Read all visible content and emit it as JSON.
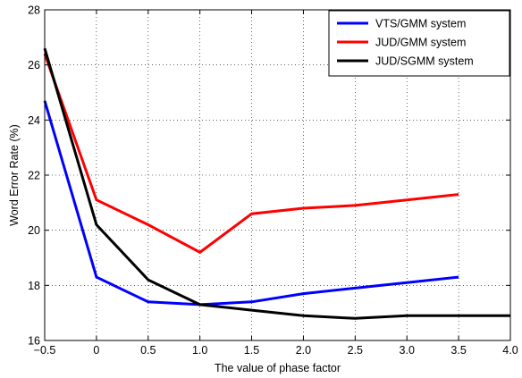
{
  "chart_data": {
    "type": "line",
    "xlabel": "The value of phase factor",
    "ylabel": "Word Error Rate (%)",
    "xlim": [
      -0.5,
      4.0
    ],
    "ylim": [
      16,
      28
    ],
    "xticks": [
      "−0.5",
      "0",
      "0.5",
      "1.0",
      "1.5",
      "2.0",
      "2.5",
      "3.0",
      "3.5",
      "4.0"
    ],
    "xtick_values": [
      -0.5,
      0,
      0.5,
      1.0,
      1.5,
      2.0,
      2.5,
      3.0,
      3.5,
      4.0
    ],
    "yticks": [
      "16",
      "18",
      "20",
      "22",
      "24",
      "26",
      "28"
    ],
    "ytick_values": [
      16,
      18,
      20,
      22,
      24,
      26,
      28
    ],
    "grid": true,
    "grid_style": "dotted",
    "legend_position": "top-right",
    "series": [
      {
        "name": "VTS/GMM system",
        "color": "#0000ff",
        "x": [
          -0.5,
          0,
          0.5,
          1.0,
          1.5,
          2.0,
          2.5,
          3.0,
          3.5
        ],
        "values": [
          24.7,
          18.3,
          17.4,
          17.3,
          17.4,
          17.7,
          17.9,
          18.1,
          18.3
        ]
      },
      {
        "name": "JUD/GMM system",
        "color": "#ff0000",
        "x": [
          -0.5,
          0,
          0.5,
          1.0,
          1.5,
          2.0,
          2.5,
          3.0,
          3.5
        ],
        "values": [
          26.4,
          21.1,
          20.2,
          19.2,
          20.6,
          20.8,
          20.9,
          21.1,
          21.3
        ]
      },
      {
        "name": "JUD/SGMM system",
        "color": "#000000",
        "x": [
          -0.5,
          0,
          0.5,
          1.0,
          1.5,
          2.0,
          2.5,
          3.0,
          3.5,
          4.0
        ],
        "values": [
          26.6,
          20.2,
          18.2,
          17.3,
          17.1,
          16.9,
          16.8,
          16.9,
          16.9,
          16.9
        ]
      }
    ]
  }
}
